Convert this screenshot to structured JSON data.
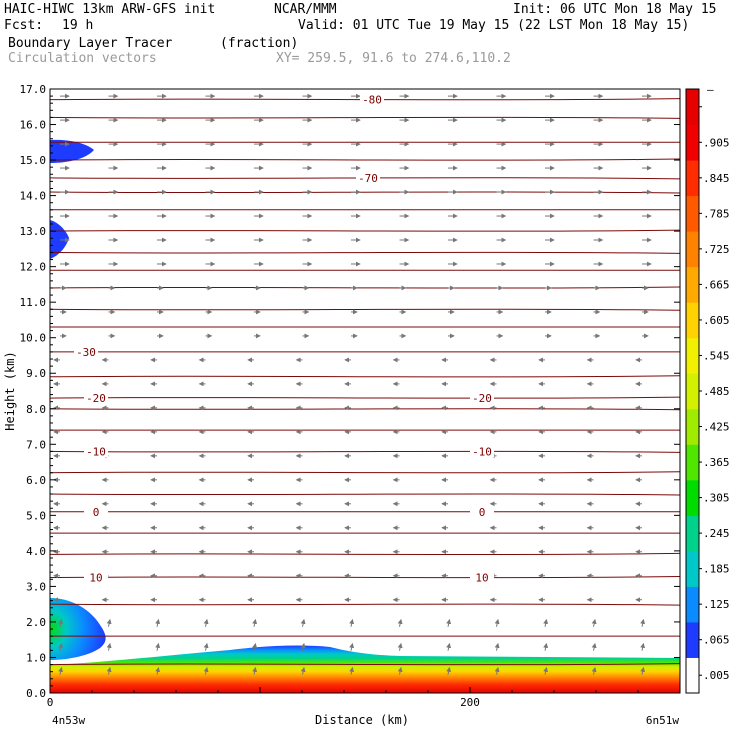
{
  "header": {
    "model": "HAIC-HIWC 13km ARW-GFS init",
    "org": "NCAR/MMM",
    "init": "Init: 06 UTC Mon 18 May 15",
    "fcst_label": "Fcst:",
    "fcst_value": "19 h",
    "valid": "Valid: 01 UTC Tue 19 May 15 (22 LST Mon 18 May 15)",
    "field1": "Boundary Layer Tracer",
    "field1_units": "(fraction)",
    "field2": "Circulation vectors",
    "xy": "XY= 259.5, 91.6 to 274.6,110.2"
  },
  "chart_data": {
    "type": "heatmap",
    "xlabel": "Distance (km)",
    "ylabel": "Height (km)",
    "xlim": [
      0,
      300
    ],
    "ylim": [
      0,
      17
    ],
    "x_ticks": [
      {
        "v": 0,
        "label": "0"
      },
      {
        "v": 200,
        "label": "200"
      }
    ],
    "x_end_labels": {
      "left": "4n53w",
      "right": "6n51w"
    },
    "y_ticks": [
      "0.0",
      "1.0",
      "2.0",
      "3.0",
      "4.0",
      "5.0",
      "6.0",
      "7.0",
      "8.0",
      "9.0",
      "10.0",
      "11.0",
      "12.0",
      "13.0",
      "14.0",
      "15.0",
      "16.0",
      "17.0"
    ],
    "colorbar": {
      "labels": [
        ".005",
        ".065",
        ".125",
        ".185",
        ".245",
        ".305",
        ".365",
        ".425",
        ".485",
        ".545",
        ".605",
        ".665",
        ".725",
        ".785",
        ".845",
        ".905",
        ""
      ],
      "top_label": "–",
      "colors": [
        "#ffffff",
        "#1e3cff",
        "#0a8cff",
        "#00c8c8",
        "#00d28c",
        "#00dc00",
        "#50e600",
        "#a0eb00",
        "#d2f000",
        "#f0f000",
        "#ffd200",
        "#ffaa00",
        "#ff8200",
        "#ff5a00",
        "#ff2d00",
        "#f00000",
        "#e60000"
      ]
    },
    "temperature_contours": [
      {
        "label": "10",
        "height": 3.25
      },
      {
        "label": "0",
        "height": 5.1
      },
      {
        "label": "-10",
        "height": 6.8
      },
      {
        "label": "-20",
        "height": 8.3
      },
      {
        "label": "-30",
        "height": 9.6
      },
      {
        "label": "-70",
        "height": 14.5
      },
      {
        "label": "-80",
        "height": 16.7
      }
    ],
    "extra_isotherm_heights": [
      0.8,
      1.6,
      2.5,
      3.9,
      4.5,
      5.6,
      6.2,
      7.4,
      8.0,
      8.9,
      10.3,
      10.8,
      11.4,
      11.9,
      12.4,
      13.0,
      13.6,
      14.1,
      15.0,
      15.5,
      16.2
    ]
  }
}
